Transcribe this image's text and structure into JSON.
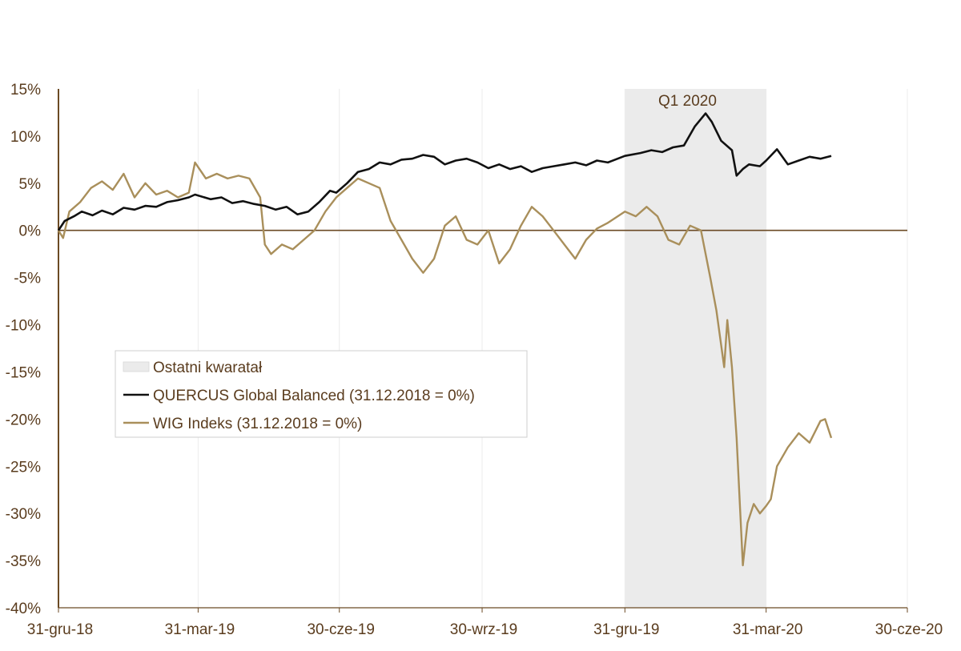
{
  "chart_data": {
    "type": "line",
    "colors": {
      "quercus": "#111111",
      "wig": "#a98f5b",
      "axis": "#6b4a24",
      "shade": "#ebebeb",
      "grid": "#ececec"
    },
    "ylim": [
      -40,
      15
    ],
    "yticks": [
      15,
      10,
      5,
      0,
      -5,
      -10,
      -15,
      -20,
      -25,
      -30,
      -35,
      -40
    ],
    "ytick_labels": [
      "15%",
      "10%",
      "5%",
      "0%",
      "-5%",
      "-10%",
      "-15%",
      "-20%",
      "-25%",
      "-30%",
      "-35%",
      "-40%"
    ],
    "xlim": [
      "2018-12-31",
      "2020-06-30"
    ],
    "xticks": [
      "2018-12-31",
      "2019-03-31",
      "2019-06-30",
      "2019-09-30",
      "2019-12-31",
      "2020-03-31",
      "2020-06-30"
    ],
    "xtick_labels": [
      "31-gru-18",
      "31-mar-19",
      "30-cze-19",
      "30-wrz-19",
      "31-gru-19",
      "31-mar-20",
      "30-cze-20"
    ],
    "grid": "vertical",
    "shaded_region": {
      "start": "2019-12-31",
      "end": "2020-03-31",
      "label": "Q1 2020"
    },
    "legend": {
      "placement": "center-left",
      "entries": [
        "Ostatni kwaratał",
        "QUERCUS Global Balanced (31.12.2018 = 0%)",
        "WIG Indeks (31.12.2018 = 0%)"
      ]
    },
    "series": [
      {
        "name": "QUERCUS Global Balanced (31.12.2018 = 0%)",
        "points": [
          [
            "2018-12-31",
            0.0
          ],
          [
            "2019-01-04",
            1.0
          ],
          [
            "2019-01-10",
            1.5
          ],
          [
            "2019-01-15",
            2.0
          ],
          [
            "2019-01-22",
            1.6
          ],
          [
            "2019-01-28",
            2.1
          ],
          [
            "2019-02-04",
            1.7
          ],
          [
            "2019-02-11",
            2.4
          ],
          [
            "2019-02-18",
            2.2
          ],
          [
            "2019-02-25",
            2.6
          ],
          [
            "2019-03-04",
            2.5
          ],
          [
            "2019-03-11",
            3.0
          ],
          [
            "2019-03-18",
            3.2
          ],
          [
            "2019-03-25",
            3.5
          ],
          [
            "2019-03-29",
            3.8
          ],
          [
            "2019-04-08",
            3.3
          ],
          [
            "2019-04-15",
            3.5
          ],
          [
            "2019-04-22",
            2.9
          ],
          [
            "2019-04-29",
            3.1
          ],
          [
            "2019-05-06",
            2.8
          ],
          [
            "2019-05-13",
            2.6
          ],
          [
            "2019-05-20",
            2.2
          ],
          [
            "2019-05-27",
            2.5
          ],
          [
            "2019-06-03",
            1.7
          ],
          [
            "2019-06-10",
            2.0
          ],
          [
            "2019-06-17",
            3.0
          ],
          [
            "2019-06-24",
            4.2
          ],
          [
            "2019-06-28",
            4.0
          ],
          [
            "2019-07-05",
            5.0
          ],
          [
            "2019-07-12",
            6.2
          ],
          [
            "2019-07-19",
            6.5
          ],
          [
            "2019-07-26",
            7.2
          ],
          [
            "2019-08-02",
            7.0
          ],
          [
            "2019-08-09",
            7.5
          ],
          [
            "2019-08-16",
            7.6
          ],
          [
            "2019-08-23",
            8.0
          ],
          [
            "2019-08-30",
            7.8
          ],
          [
            "2019-09-06",
            7.0
          ],
          [
            "2019-09-13",
            7.4
          ],
          [
            "2019-09-20",
            7.6
          ],
          [
            "2019-09-27",
            7.2
          ],
          [
            "2019-10-04",
            6.6
          ],
          [
            "2019-10-11",
            7.0
          ],
          [
            "2019-10-18",
            6.5
          ],
          [
            "2019-10-25",
            6.8
          ],
          [
            "2019-11-01",
            6.2
          ],
          [
            "2019-11-08",
            6.6
          ],
          [
            "2019-11-15",
            6.8
          ],
          [
            "2019-11-22",
            7.0
          ],
          [
            "2019-11-29",
            7.2
          ],
          [
            "2019-12-06",
            6.9
          ],
          [
            "2019-12-13",
            7.4
          ],
          [
            "2019-12-20",
            7.2
          ],
          [
            "2019-12-31",
            7.9
          ],
          [
            "2020-01-10",
            8.2
          ],
          [
            "2020-01-17",
            8.5
          ],
          [
            "2020-01-24",
            8.3
          ],
          [
            "2020-01-31",
            8.8
          ],
          [
            "2020-02-07",
            9.0
          ],
          [
            "2020-02-14",
            11.0
          ],
          [
            "2020-02-21",
            12.4
          ],
          [
            "2020-02-25",
            11.5
          ],
          [
            "2020-03-02",
            9.5
          ],
          [
            "2020-03-09",
            8.5
          ],
          [
            "2020-03-12",
            5.8
          ],
          [
            "2020-03-16",
            6.5
          ],
          [
            "2020-03-20",
            7.0
          ],
          [
            "2020-03-27",
            6.8
          ],
          [
            "2020-03-31",
            7.4
          ],
          [
            "2020-04-07",
            8.6
          ],
          [
            "2020-04-14",
            7.0
          ],
          [
            "2020-04-21",
            7.4
          ],
          [
            "2020-04-28",
            7.8
          ],
          [
            "2020-05-05",
            7.6
          ],
          [
            "2020-05-12",
            7.9
          ]
        ]
      },
      {
        "name": "WIG Indeks (31.12.2018 = 0%)",
        "points": [
          [
            "2018-12-31",
            0.0
          ],
          [
            "2019-01-03",
            -0.8
          ],
          [
            "2019-01-07",
            2.0
          ],
          [
            "2019-01-14",
            3.0
          ],
          [
            "2019-01-21",
            4.5
          ],
          [
            "2019-01-28",
            5.2
          ],
          [
            "2019-02-04",
            4.3
          ],
          [
            "2019-02-11",
            6.0
          ],
          [
            "2019-02-18",
            3.5
          ],
          [
            "2019-02-25",
            5.0
          ],
          [
            "2019-03-04",
            3.8
          ],
          [
            "2019-03-11",
            4.2
          ],
          [
            "2019-03-18",
            3.5
          ],
          [
            "2019-03-25",
            4.0
          ],
          [
            "2019-03-29",
            7.2
          ],
          [
            "2019-04-05",
            5.5
          ],
          [
            "2019-04-12",
            6.0
          ],
          [
            "2019-04-19",
            5.5
          ],
          [
            "2019-04-26",
            5.8
          ],
          [
            "2019-05-03",
            5.5
          ],
          [
            "2019-05-10",
            3.5
          ],
          [
            "2019-05-13",
            -1.5
          ],
          [
            "2019-05-17",
            -2.5
          ],
          [
            "2019-05-24",
            -1.5
          ],
          [
            "2019-05-31",
            -2.0
          ],
          [
            "2019-06-07",
            -1.0
          ],
          [
            "2019-06-14",
            0.0
          ],
          [
            "2019-06-21",
            2.0
          ],
          [
            "2019-06-28",
            3.5
          ],
          [
            "2019-07-05",
            4.5
          ],
          [
            "2019-07-12",
            5.5
          ],
          [
            "2019-07-19",
            5.0
          ],
          [
            "2019-07-26",
            4.5
          ],
          [
            "2019-08-02",
            1.0
          ],
          [
            "2019-08-09",
            -1.0
          ],
          [
            "2019-08-16",
            -3.0
          ],
          [
            "2019-08-23",
            -4.5
          ],
          [
            "2019-08-30",
            -3.0
          ],
          [
            "2019-09-06",
            0.5
          ],
          [
            "2019-09-13",
            1.5
          ],
          [
            "2019-09-20",
            -1.0
          ],
          [
            "2019-09-27",
            -1.5
          ],
          [
            "2019-10-04",
            0.0
          ],
          [
            "2019-10-11",
            -3.5
          ],
          [
            "2019-10-18",
            -2.0
          ],
          [
            "2019-10-25",
            0.5
          ],
          [
            "2019-11-01",
            2.5
          ],
          [
            "2019-11-08",
            1.5
          ],
          [
            "2019-11-15",
            0.0
          ],
          [
            "2019-11-22",
            -1.5
          ],
          [
            "2019-11-29",
            -3.0
          ],
          [
            "2019-12-06",
            -1.0
          ],
          [
            "2019-12-13",
            0.2
          ],
          [
            "2019-12-20",
            0.8
          ],
          [
            "2019-12-31",
            2.0
          ],
          [
            "2020-01-07",
            1.5
          ],
          [
            "2020-01-14",
            2.5
          ],
          [
            "2020-01-21",
            1.5
          ],
          [
            "2020-01-28",
            -1.0
          ],
          [
            "2020-02-04",
            -1.5
          ],
          [
            "2020-02-11",
            0.5
          ],
          [
            "2020-02-18",
            0.0
          ],
          [
            "2020-02-24",
            -5.0
          ],
          [
            "2020-02-28",
            -8.5
          ],
          [
            "2020-03-04",
            -14.5
          ],
          [
            "2020-03-06",
            -9.5
          ],
          [
            "2020-03-09",
            -14.5
          ],
          [
            "2020-03-12",
            -22.0
          ],
          [
            "2020-03-16",
            -35.5
          ],
          [
            "2020-03-19",
            -31.0
          ],
          [
            "2020-03-23",
            -29.0
          ],
          [
            "2020-03-27",
            -30.0
          ],
          [
            "2020-03-31",
            -29.2
          ],
          [
            "2020-04-03",
            -28.5
          ],
          [
            "2020-04-07",
            -25.0
          ],
          [
            "2020-04-14",
            -23.0
          ],
          [
            "2020-04-21",
            -21.5
          ],
          [
            "2020-04-28",
            -22.5
          ],
          [
            "2020-05-05",
            -20.2
          ],
          [
            "2020-05-08",
            -20.0
          ],
          [
            "2020-05-12",
            -22.0
          ]
        ]
      }
    ]
  }
}
